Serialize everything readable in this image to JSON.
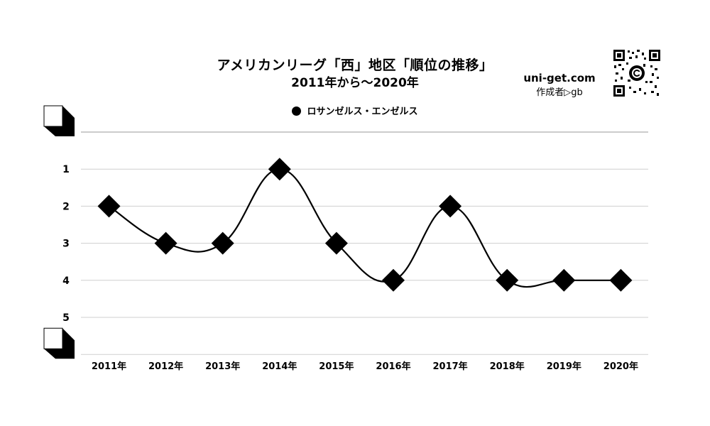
{
  "header": {
    "site": "uni-get.com",
    "author": "作成者▷gb",
    "qr_icon": "qr-code-icon"
  },
  "chart_data": {
    "type": "line",
    "title": "アメリカンリーグ「西」地区「順位の推移」",
    "subtitle": "2011年から〜2020年",
    "categories": [
      "2011年",
      "2012年",
      "2013年",
      "2014年",
      "2015年",
      "2016年",
      "2017年",
      "2018年",
      "2019年",
      "2020年"
    ],
    "series": [
      {
        "name": "ロサンゼルス・エンゼルス",
        "values": [
          2,
          3,
          3,
          1,
          3,
          4,
          2,
          4,
          4,
          4
        ],
        "color": "#000000",
        "marker": "diamond"
      }
    ],
    "y_tick_labels": [
      "1",
      "2",
      "3",
      "4",
      "5"
    ],
    "ylim": [
      0,
      6
    ],
    "y_inverted": true,
    "grid": true,
    "legend_position": "top-center",
    "smooth": true
  }
}
